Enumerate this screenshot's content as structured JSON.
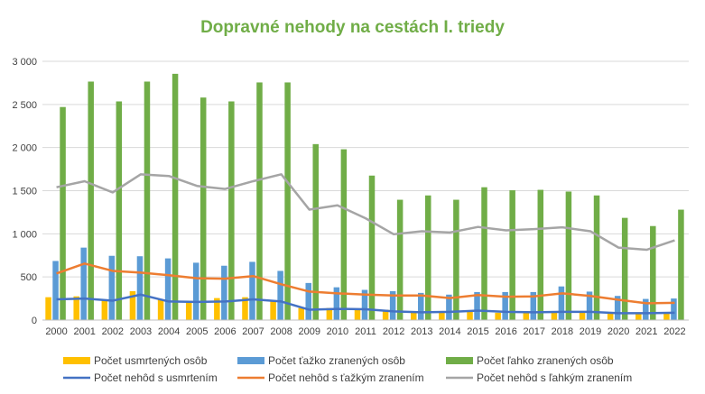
{
  "chart_data": {
    "type": "bar",
    "title": "Dopravné nehody na cestách I. triedy",
    "categories": [
      "2000",
      "2001",
      "2002",
      "2003",
      "2004",
      "2005",
      "2006",
      "2007",
      "2008",
      "2009",
      "2010",
      "2011",
      "2012",
      "2013",
      "2014",
      "2015",
      "2016",
      "2017",
      "2018",
      "2019",
      "2020",
      "2021",
      "2022"
    ],
    "ylim": [
      0,
      3000
    ],
    "yticks": [
      "0",
      "500",
      "1 000",
      "1 500",
      "2 000",
      "2 500",
      "3 000"
    ],
    "grid": true,
    "legend_position": "bottom",
    "series": [
      {
        "name": "Počet usmrtených osôb",
        "type": "bar",
        "color": "#ffc000",
        "values": [
          265,
          275,
          240,
          335,
          240,
          210,
          255,
          265,
          220,
          140,
          140,
          135,
          120,
          95,
          95,
          105,
          85,
          90,
          90,
          95,
          85,
          90,
          80
        ]
      },
      {
        "name": "Počet ťažko zranených osôb",
        "type": "bar",
        "color": "#5b9bd5",
        "values": [
          685,
          840,
          745,
          740,
          715,
          665,
          630,
          675,
          570,
          430,
          380,
          350,
          335,
          315,
          295,
          325,
          325,
          325,
          390,
          330,
          280,
          245,
          250
        ]
      },
      {
        "name": "Počet ľahko zranených osôb",
        "type": "bar",
        "color": "#70ad47",
        "values": [
          2470,
          2765,
          2535,
          2765,
          2855,
          2580,
          2535,
          2755,
          2755,
          2040,
          1980,
          1675,
          1395,
          1445,
          1395,
          1540,
          1505,
          1510,
          1490,
          1445,
          1185,
          1090,
          1280
        ]
      },
      {
        "name": "Počet nehôd s usmrtením",
        "type": "line",
        "color": "#4472c4",
        "values": [
          240,
          250,
          225,
          295,
          215,
          210,
          215,
          240,
          215,
          120,
          130,
          125,
          100,
          90,
          95,
          110,
          95,
          90,
          95,
          95,
          80,
          80,
          85
        ]
      },
      {
        "name": "Počet nehôd s ťažkým zranením",
        "type": "line",
        "color": "#ed7d31",
        "values": [
          540,
          655,
          570,
          550,
          520,
          485,
          480,
          510,
          415,
          330,
          310,
          295,
          285,
          285,
          255,
          290,
          270,
          275,
          310,
          280,
          235,
          195,
          200
        ]
      },
      {
        "name": "Počet nehôd s ľahkým zranením",
        "type": "line",
        "color": "#a5a5a5",
        "values": [
          1540,
          1610,
          1480,
          1690,
          1670,
          1555,
          1520,
          1610,
          1690,
          1280,
          1330,
          1180,
          995,
          1030,
          1015,
          1080,
          1040,
          1055,
          1075,
          1030,
          840,
          815,
          925
        ]
      }
    ]
  }
}
